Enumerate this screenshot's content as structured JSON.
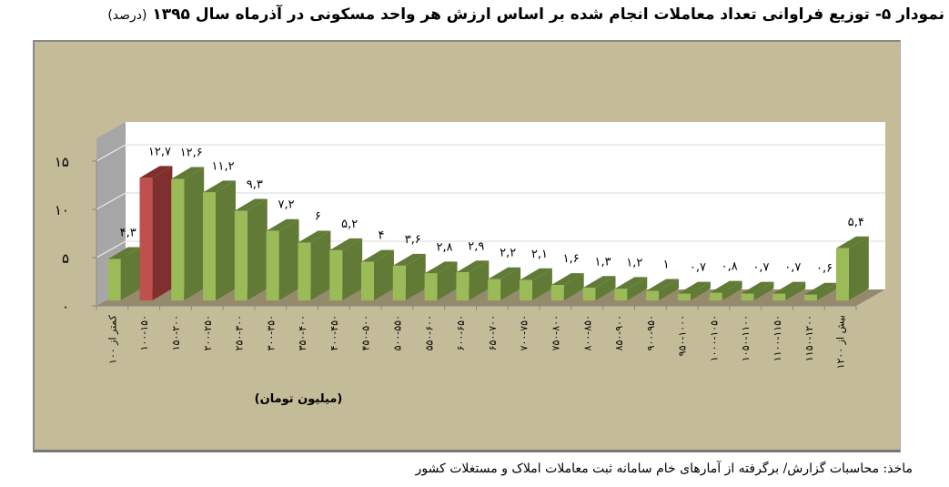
{
  "title": {
    "main": "نمودار ۵- توزیع فراوانی تعداد معاملات انجام شده بر اساس ارزش هر واحد مسکونی در آذرماه سال ۱۳۹۵",
    "unit": "(درصد)"
  },
  "source": "ماخذ: محاسبات گزارش/ برگرفته از آمارهای خام سامانه ثبت معاملات املاک و مستغلات کشور",
  "chart_data": {
    "type": "bar",
    "title": "نمودار ۵- توزیع فراوانی تعداد معاملات انجام شده بر اساس ارزش هر واحد مسکونی در آذرماه سال ۱۳۹۵ (درصد)",
    "xlabel": "(میلیون تومان)",
    "ylabel": "درصد",
    "ylim": [
      0,
      15
    ],
    "yticks": [
      "۰",
      "۵",
      "۱۰",
      "۱۵"
    ],
    "grid": true,
    "style": "3d-column",
    "highlight_index": 1,
    "colors": {
      "normal": "#9bbb59",
      "normal_side": "#617a36",
      "highlight": "#c0504d",
      "highlight_side": "#7f2f2d",
      "floor": "#958b6c",
      "wall": "#a6a6a6",
      "background": "#c4bc99",
      "plot": "#ffffff"
    },
    "categories": [
      "کمتر از ۱۰۰",
      "۱۰۰-۱۵۰",
      "۱۵۰-۲۰۰",
      "۲۰۰-۲۵۰",
      "۲۵۰-۳۰۰",
      "۳۰۰-۳۵۰",
      "۳۵۰-۴۰۰",
      "۴۰۰-۴۵۰",
      "۴۵۰-۵۰۰",
      "۵۰۰-۵۵۰",
      "۵۵۰-۶۰۰",
      "۶۰۰-۶۵۰",
      "۶۵۰-۷۰۰",
      "۷۰۰-۷۵۰",
      "۷۵۰-۸۰۰",
      "۸۰۰-۸۵۰",
      "۸۵۰-۹۰۰",
      "۹۰۰-۹۵۰",
      "۹۵۰-۱۰۰۰",
      "۱۰۰۰-۱۰۵۰",
      "۱۰۵۰-۱۱۰۰",
      "۱۱۰۰-۱۱۵۰",
      "۱۱۵۰-۱۲۰۰",
      "بیش از ۱۲۰۰"
    ],
    "values": [
      4.3,
      12.7,
      12.6,
      11.2,
      9.3,
      7.2,
      6,
      5.2,
      4,
      3.6,
      2.8,
      2.9,
      2.2,
      2.1,
      1.6,
      1.3,
      1.2,
      1,
      0.7,
      0.8,
      0.7,
      0.7,
      0.6,
      5.4
    ],
    "labels": [
      "۴,۳",
      "۱۲,۷",
      "۱۲,۶",
      "۱۱,۲",
      "۹,۳",
      "۷,۲",
      "۶",
      "۵,۲",
      "۴",
      "۳,۶",
      "۲,۸",
      "۲,۹",
      "۲,۲",
      "۲,۱",
      "۱,۶",
      "۱,۳",
      "۱,۲",
      "۱",
      "۰,۷",
      "۰,۸",
      "۰,۷",
      "۰,۷",
      "۰,۶",
      "۵,۴"
    ]
  }
}
